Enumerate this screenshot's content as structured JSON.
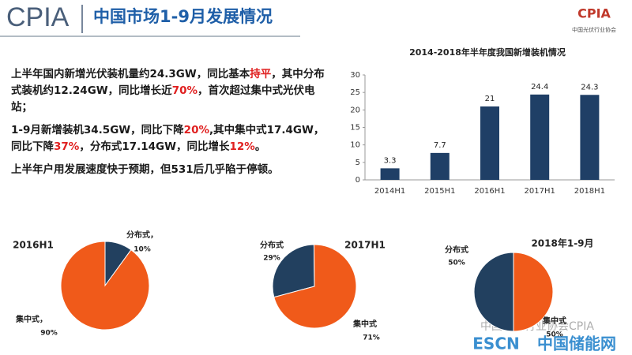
{
  "header": {
    "logo": "CPIA",
    "title": "中国市场1-9月发展情况",
    "logo_right": "CPIA",
    "logo_right_sub": "中国光伏行业协会"
  },
  "text": {
    "paragraphs": [
      [
        {
          "text": "上半年国内新增光伏装机量约24.3GW，同比基本",
          "color": "#1a1a1a"
        },
        {
          "text": "持平",
          "color": "#e02020"
        },
        {
          "text": "，其中分布式装机约12.24GW，同比增长近",
          "color": "#1a1a1a"
        },
        {
          "text": "70%",
          "color": "#e02020"
        },
        {
          "text": "，首次超过集中式光伏电站；",
          "color": "#1a1a1a"
        }
      ],
      [
        {
          "text": "1-9月新增装机34.5GW，同比下降",
          "color": "#1a1a1a"
        },
        {
          "text": "20%",
          "color": "#e02020"
        },
        {
          "text": ",其中集中式17.4GW，同比下降",
          "color": "#1a1a1a"
        },
        {
          "text": "37%",
          "color": "#e02020"
        },
        {
          "text": "，分布式17.14GW，同比增长",
          "color": "#1a1a1a"
        },
        {
          "text": "12%",
          "color": "#e02020"
        },
        {
          "text": "。",
          "color": "#1a1a1a"
        }
      ],
      [
        {
          "text": "上半年户用发展速度快于预期，但531后几乎陷于停顿。",
          "color": "#1a1a1a"
        }
      ]
    ]
  },
  "watermark": [
    "中国光伏行业协会CPIA",
    "ESCN",
    "中国储能网"
  ],
  "chart_data": [
    {
      "type": "bar",
      "title": "2014-2018年半年度我国新增装机情况",
      "categories": [
        "2014H1",
        "2015H1",
        "2016H1",
        "2017H1",
        "2018H1"
      ],
      "values": [
        3.3,
        7.7,
        21,
        24.4,
        24.3
      ],
      "color": "#1f3f66",
      "ylim": [
        0,
        30
      ],
      "yticks": [
        0,
        5,
        10,
        15,
        20,
        25,
        30
      ],
      "grid": false
    },
    {
      "type": "pie",
      "title": "2016H1",
      "categories": [
        "分布式，",
        "集中式，"
      ],
      "values": [
        10,
        90
      ],
      "value_labels": [
        "10%",
        "90%"
      ],
      "colors": [
        "#22405f",
        "#f05a1a"
      ]
    },
    {
      "type": "pie",
      "title": "2017H1",
      "categories": [
        "分布式",
        "集中式"
      ],
      "values": [
        29,
        71
      ],
      "value_labels": [
        "29%",
        "71%"
      ],
      "colors": [
        "#22405f",
        "#f05a1a"
      ]
    },
    {
      "type": "pie",
      "title": "2018年1-9月",
      "categories": [
        "分布式",
        "集中式"
      ],
      "values": [
        50,
        50
      ],
      "value_labels": [
        "50%",
        "50%"
      ],
      "colors": [
        "#22405f",
        "#f05a1a"
      ]
    }
  ]
}
